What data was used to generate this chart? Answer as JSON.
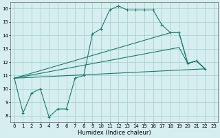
{
  "xlabel": "Humidex (Indice chaleur)",
  "xlim": [
    -0.5,
    23.5
  ],
  "ylim": [
    7.5,
    16.5
  ],
  "xticks": [
    0,
    1,
    2,
    3,
    4,
    5,
    6,
    7,
    8,
    9,
    10,
    11,
    12,
    13,
    14,
    15,
    16,
    17,
    18,
    19,
    20,
    21,
    22,
    23
  ],
  "yticks": [
    8,
    9,
    10,
    11,
    12,
    13,
    14,
    15,
    16
  ],
  "bg_color": "#d6eef0",
  "grid_color": "#9fcfcc",
  "line_color": "#1a7a6a",
  "line1_x": [
    0,
    1,
    2,
    3,
    4,
    5,
    6,
    7,
    8,
    9,
    10,
    11,
    12,
    13,
    14,
    15,
    16,
    17,
    18,
    19,
    20,
    21,
    22
  ],
  "line1_y": [
    10.8,
    8.2,
    9.7,
    10.0,
    7.9,
    8.5,
    8.5,
    10.8,
    11.0,
    14.1,
    14.5,
    15.9,
    16.2,
    15.9,
    15.9,
    15.9,
    15.9,
    14.8,
    14.2,
    14.2,
    11.9,
    12.1,
    11.5
  ],
  "line2_x": [
    0,
    22
  ],
  "line2_y": [
    10.8,
    11.5
  ],
  "line3_x": [
    0,
    19,
    20,
    21,
    22
  ],
  "line3_y": [
    10.8,
    13.1,
    11.9,
    12.1,
    11.5
  ],
  "line4_x": [
    0,
    18,
    19,
    20,
    21,
    22
  ],
  "line4_y": [
    10.8,
    14.2,
    14.2,
    11.9,
    12.1,
    11.5
  ]
}
